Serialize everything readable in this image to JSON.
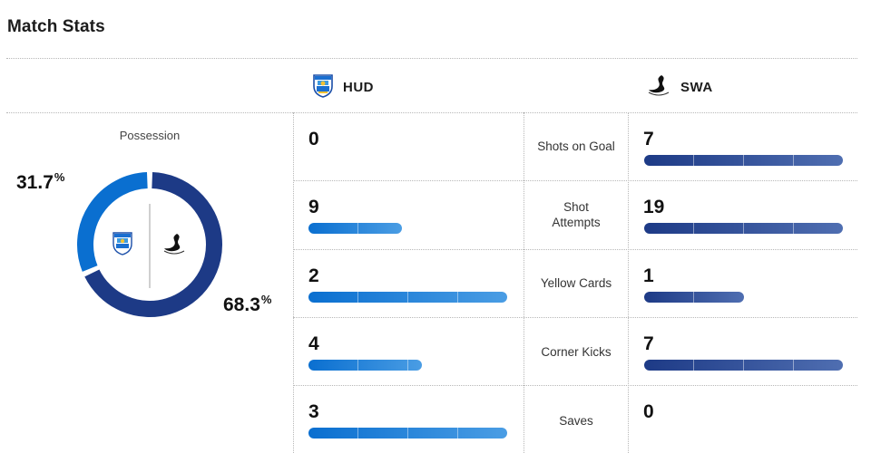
{
  "page_title": "Match Stats",
  "teams": {
    "home": {
      "abbr": "HUD",
      "color": "#0a6fd0",
      "logo_icon": "huddersfield-crest-icon"
    },
    "away": {
      "abbr": "SWA",
      "color": "#1d3a86",
      "logo_icon": "swansea-swan-icon"
    }
  },
  "possession": {
    "label": "Possession",
    "home_pct": 31.7,
    "away_pct": 68.3,
    "home_value": "31.7",
    "away_value": "68.3",
    "unit": "%"
  },
  "stats": [
    {
      "label": "Shots on Goal",
      "home": "0",
      "away": "7",
      "home_fill": 0,
      "away_fill": 1.0
    },
    {
      "label": "Shot Attempts",
      "home": "9",
      "away": "19",
      "home_fill": 0.47,
      "away_fill": 1.0
    },
    {
      "label": "Yellow Cards",
      "home": "2",
      "away": "1",
      "home_fill": 1.0,
      "away_fill": 0.5
    },
    {
      "label": "Corner Kicks",
      "home": "4",
      "away": "7",
      "home_fill": 0.57,
      "away_fill": 1.0
    },
    {
      "label": "Saves",
      "home": "3",
      "away": "0",
      "home_fill": 1.0,
      "away_fill": 0
    }
  ]
}
